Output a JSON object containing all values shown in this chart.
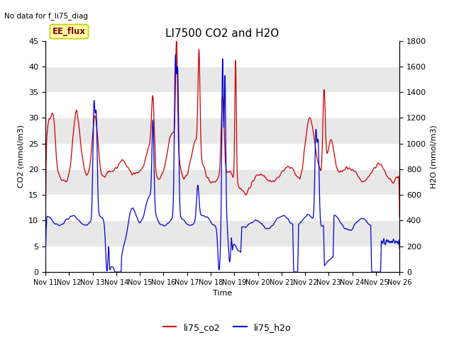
{
  "title": "LI7500 CO2 and H2O",
  "top_left_text": "No data for f_li75_diag",
  "xlabel": "Time",
  "ylabel_left": "CO2 (mmol/m3)",
  "ylabel_right": "H2O (mmol/m3)",
  "box_label": "EE_flux",
  "legend_labels": [
    "li75_co2",
    "li75_h2o"
  ],
  "legend_colors": [
    "#cc0000",
    "#0000cc"
  ],
  "co2_color": "#cc0000",
  "h2o_color": "#0000cc",
  "ylim_left": [
    0,
    45
  ],
  "ylim_right": [
    0,
    1800
  ],
  "yticks_left": [
    0,
    5,
    10,
    15,
    20,
    25,
    30,
    35,
    40,
    45
  ],
  "yticks_right": [
    0,
    200,
    400,
    600,
    800,
    1000,
    1200,
    1400,
    1600,
    1800
  ],
  "xtick_labels": [
    "Nov 11",
    "Nov 12",
    "Nov 13",
    "Nov 14",
    "Nov 15",
    "Nov 16",
    "Nov 17",
    "Nov 18",
    "Nov 19",
    "Nov 20",
    "Nov 21",
    "Nov 22",
    "Nov 23",
    "Nov 24",
    "Nov 25",
    "Nov 26"
  ],
  "background_color": "#ffffff",
  "grid_band_color": "#e8e8e8",
  "title_fontsize": 11,
  "axis_label_fontsize": 8,
  "tick_fontsize": 8,
  "ee_flux_facecolor": "#ffffaa",
  "ee_flux_edgecolor": "#cccc00",
  "ee_flux_textcolor": "#880000"
}
